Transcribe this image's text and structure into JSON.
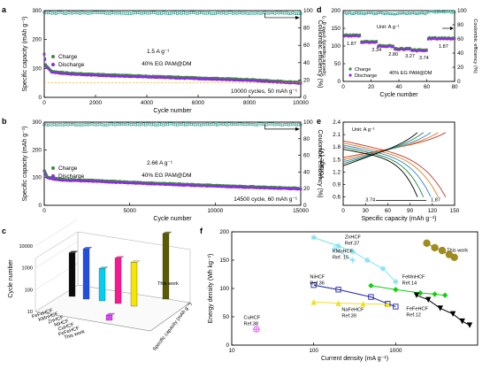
{
  "colors": {
    "charge": "#3d8a3d",
    "discharge": "#8b2be2",
    "ce": "#2a9d8f"
  },
  "chart_data": [
    {
      "panel": "a",
      "type": "scatter",
      "xlabel": "Cycle number",
      "ylabel": "Specific capacity (mAh g⁻¹)",
      "y2label": "Coulombic efficiency (%)",
      "xlim": [
        0,
        10000
      ],
      "ylim": [
        0,
        300
      ],
      "y2lim": [
        0,
        100
      ],
      "xticks": [
        "0",
        "2000",
        "4000",
        "6000",
        "8000",
        "10000"
      ],
      "yticks": [
        "0",
        "100",
        "200",
        "300"
      ],
      "y2ticks": [
        "0",
        "20",
        "40",
        "60",
        "80",
        "100"
      ],
      "legend": [
        "Charge",
        "Discharge"
      ],
      "ann1": "1.5 A g⁻¹",
      "ann2": "40% EG PAM@DM",
      "ann3": "10000 cycles, 50 mAh g⁻¹",
      "capacity": [
        [
          0,
          150
        ],
        [
          60,
          110
        ],
        [
          300,
          88
        ],
        [
          1000,
          82
        ],
        [
          2000,
          78
        ],
        [
          4000,
          72
        ],
        [
          6000,
          66
        ],
        [
          8000,
          60
        ],
        [
          9000,
          55
        ],
        [
          10000,
          50
        ]
      ],
      "ce": [
        [
          0,
          98
        ],
        [
          10000,
          98
        ]
      ]
    },
    {
      "panel": "b",
      "type": "scatter",
      "xlabel": "Cycle number",
      "ylabel": "Specific capacity (mAh g⁻¹)",
      "y2label": "Coulombic efficiency (%)",
      "xlim": [
        0,
        15000
      ],
      "ylim": [
        0,
        300
      ],
      "y2lim": [
        0,
        100
      ],
      "xticks": [
        "0",
        "5000",
        "10000",
        "15000"
      ],
      "yticks": [
        "0",
        "100",
        "200",
        "300"
      ],
      "y2ticks": [
        "0",
        "20",
        "40",
        "60",
        "80",
        "100"
      ],
      "legend": [
        "Charge",
        "Discharge"
      ],
      "ann1": "2.66 A g⁻¹",
      "ann2": "40% EG PAM@DM",
      "ann3": "14500 cycle, 60 mAh g⁻¹",
      "capacity": [
        [
          0,
          125
        ],
        [
          200,
          100
        ],
        [
          1000,
          92
        ],
        [
          3000,
          88
        ],
        [
          5000,
          82
        ],
        [
          8000,
          75
        ],
        [
          11000,
          68
        ],
        [
          13000,
          64
        ],
        [
          15000,
          60
        ]
      ],
      "ce": [
        [
          0,
          98
        ],
        [
          15000,
          98
        ]
      ]
    },
    {
      "panel": "d",
      "type": "scatter",
      "xlabel": "Cycle number",
      "ylabel": "Specific capacity (mAh g⁻¹)",
      "y2label": "Coulombic efficiency (%)",
      "xlim": [
        0,
        80
      ],
      "ylim": [
        0,
        200
      ],
      "y2lim": [
        0,
        100
      ],
      "xticks": [
        "0",
        "20",
        "40",
        "60",
        "80"
      ],
      "yticks": [
        "0",
        "50",
        "100",
        "150",
        "200"
      ],
      "y2ticks": [
        "0",
        "20",
        "40",
        "60",
        "80",
        "100"
      ],
      "legend": [
        "Charge",
        "Discharge"
      ],
      "unit": "Unit: A g⁻¹",
      "ann2": "40% EG PAM@DM",
      "rate_labels": [
        "1.87",
        "2.34",
        "2.80",
        "3.27",
        "3.74",
        "1.87"
      ],
      "rate_capacity": [
        130,
        112,
        100,
        92,
        88,
        122
      ],
      "ce_low": 97,
      "ce_high": 99
    },
    {
      "panel": "e",
      "type": "line",
      "xlabel": "Specific capacity (mAh g⁻¹)",
      "ylabel": "Voltage (V)",
      "xlim": [
        0,
        150
      ],
      "ylim": [
        0.4,
        2.4
      ],
      "xticks": [
        "0",
        "30",
        "60",
        "90",
        "120",
        "150"
      ],
      "yticks": [
        "0.6",
        "0.9",
        "1.2",
        "1.5",
        "1.8",
        "2.1",
        "2.4"
      ],
      "unit": "Unit: A g⁻¹",
      "label_left": "3.74",
      "label_right": "1.87",
      "series_capacity": [
        138,
        128,
        118,
        108,
        100
      ],
      "series_colors": [
        "#c0392b",
        "#e67e22",
        "#2e86c1",
        "#1e8449",
        "#000000"
      ]
    },
    {
      "panel": "c",
      "type": "bar",
      "ylabel": "Cycle number",
      "zlabel": "Specific capacity (mAh g⁻¹)",
      "yticks": [
        "10",
        "100",
        "1000",
        "10000"
      ],
      "categories": [
        "FeFeHCF",
        "KMnHCF",
        "ZnHCF",
        "NiHCF",
        "CuHCF",
        "FeFeHCF",
        "This work"
      ],
      "values": [
        1000,
        2000,
        300,
        1200,
        1000,
        5,
        10000
      ],
      "colors": [
        "#0a0a0a",
        "#1f4fe0",
        "#00d0f0",
        "#ff1493",
        "#f5e500",
        "#e040fb",
        "#5a5a00"
      ],
      "annotation": "This work"
    },
    {
      "panel": "f",
      "type": "scatter",
      "xlabel": "Current density (mA g⁻¹)",
      "ylabel": "Energy density (Wh kg⁻¹)",
      "xlim": [
        10,
        10000
      ],
      "ylim": [
        0,
        200
      ],
      "xticks": [
        "10",
        "100",
        "1000"
      ],
      "yticks": [
        "0",
        "50",
        "100",
        "150",
        "200"
      ],
      "series": [
        {
          "name": "This work",
          "ref": "",
          "color": "#a08c1e",
          "marker": "circle",
          "points": [
            [
              2400,
              180
            ],
            [
              3000,
              172
            ],
            [
              3700,
              167
            ],
            [
              4500,
              160
            ],
            [
              5200,
              155
            ]
          ]
        },
        {
          "name": "ZnHCF",
          "ref": "Ref.37",
          "color": "#7fe0f0",
          "marker": "star",
          "points": [
            [
              100,
              190
            ],
            [
              200,
              175
            ],
            [
              300,
              165
            ],
            [
              450,
              150
            ],
            [
              700,
              135
            ],
            [
              1000,
              112
            ]
          ]
        },
        {
          "name": "KMnHCF",
          "ref": "Ref. 15",
          "color": "#7fe0f0",
          "marker": "cross",
          "points": [
            [
              180,
              170
            ],
            [
              300,
              150
            ]
          ]
        },
        {
          "name": "FeMnHCF",
          "ref": "Ref.14",
          "color": "#10d010",
          "marker": "diamond",
          "points": [
            [
              500,
              105
            ],
            [
              1000,
              98
            ],
            [
              2000,
              92
            ],
            [
              3000,
              90
            ],
            [
              4000,
              88
            ]
          ]
        },
        {
          "name": "NiHCF",
          "ref": "Ref.36",
          "color": "#2222aa",
          "marker": "square",
          "points": [
            [
              100,
              106
            ],
            [
              200,
              98
            ],
            [
              500,
              85
            ],
            [
              800,
              73
            ],
            [
              1000,
              68
            ]
          ]
        },
        {
          "name": "NaFeHCF",
          "ref": "Ref.39",
          "color": "#f0e020",
          "marker": "triangle",
          "points": [
            [
              100,
              76
            ],
            [
              200,
              74
            ],
            [
              400,
              73
            ],
            [
              800,
              72
            ]
          ]
        },
        {
          "name": "FeFeHCF",
          "ref": "Ref.12",
          "color": "#000000",
          "marker": "tridown",
          "points": [
            [
              1800,
              88
            ],
            [
              2500,
              80
            ],
            [
              3500,
              65
            ],
            [
              5000,
              55
            ],
            [
              6500,
              42
            ],
            [
              8000,
              35
            ]
          ]
        },
        {
          "name": "CuHCF",
          "ref": "Ref.38",
          "color": "#e040fb",
          "marker": "crosscircle",
          "points": [
            [
              20,
              28
            ]
          ]
        }
      ]
    }
  ]
}
